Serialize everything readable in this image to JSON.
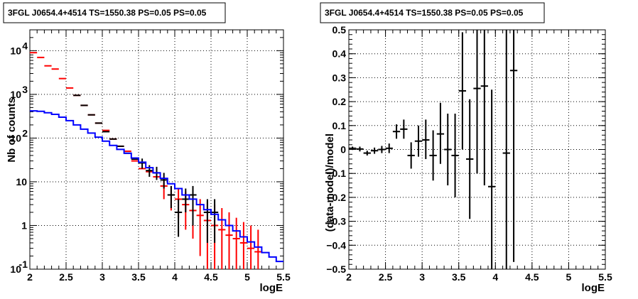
{
  "chart_data": [
    {
      "type": "scatter",
      "title": "3FGL J0654.4+4514 TS=1550.38 PS=0.05 PS=0.05",
      "xlabel": "logE",
      "ylabel": "Nb of counts",
      "xlim": [
        2,
        5.5
      ],
      "ylim": [
        0.1,
        30000
      ],
      "yscale": "log",
      "grid": true,
      "x_ticks": [
        "2",
        "2.5",
        "3",
        "3.5",
        "4",
        "4.5",
        "5",
        "5.5"
      ],
      "y_ticks": [
        {
          "value": 0.1,
          "base": "10",
          "exp": "-1"
        },
        {
          "value": 1,
          "base": "1",
          "exp": ""
        },
        {
          "value": 10,
          "base": "10",
          "exp": ""
        },
        {
          "value": 100,
          "base": "10",
          "exp": "2"
        },
        {
          "value": 1000,
          "base": "10",
          "exp": "3"
        },
        {
          "value": 10000,
          "base": "10",
          "exp": "4"
        }
      ],
      "series": [
        {
          "color": "#ff0000",
          "points": [
            {
              "x": 2.05,
              "y": 9000
            },
            {
              "x": 2.15,
              "y": 7000
            },
            {
              "x": 2.25,
              "y": 4500
            },
            {
              "x": 2.35,
              "y": 3800
            },
            {
              "x": 2.45,
              "y": 2300
            },
            {
              "x": 2.55,
              "y": 1400
            },
            {
              "x": 2.65,
              "y": 950
            },
            {
              "x": 2.75,
              "y": 560
            },
            {
              "x": 2.85,
              "y": 340
            },
            {
              "x": 2.95,
              "y": 220
            },
            {
              "x": 3.05,
              "y": 150
            },
            {
              "x": 3.15,
              "y": 95
            },
            {
              "x": 3.25,
              "y": 65
            },
            {
              "x": 3.35,
              "y": 50
            },
            {
              "x": 3.45,
              "y": 30
            },
            {
              "x": 3.55,
              "y": 20
            },
            {
              "x": 3.65,
              "y": 17
            },
            {
              "x": 3.75,
              "y": 13
            },
            {
              "x": 3.85,
              "y": 8,
              "lo": 4,
              "hi": 13
            },
            {
              "x": 3.95,
              "y": 5,
              "lo": 2.2,
              "hi": 8
            },
            {
              "x": 4.05,
              "y": 4,
              "lo": 1.5,
              "hi": 7
            },
            {
              "x": 4.15,
              "y": 3,
              "lo": 0.8,
              "hi": 6
            },
            {
              "x": 4.25,
              "y": 2.2,
              "lo": 0.5,
              "hi": 4.5
            },
            {
              "x": 4.35,
              "y": 1.7,
              "lo": 0.2,
              "hi": 4
            },
            {
              "x": 4.45,
              "y": 1.3,
              "lo": 0.1,
              "hi": 3.5
            },
            {
              "x": 4.55,
              "y": 1,
              "lo": 0.1,
              "hi": 3
            },
            {
              "x": 4.65,
              "y": 0.8,
              "lo": 0.1,
              "hi": 2.5
            },
            {
              "x": 4.75,
              "y": 0.6,
              "lo": 0.1,
              "hi": 2
            },
            {
              "x": 4.85,
              "y": 0.5,
              "lo": 0.1,
              "hi": 1.5
            },
            {
              "x": 4.95,
              "y": 0.4,
              "lo": 0.1,
              "hi": 1.2
            },
            {
              "x": 5.05,
              "y": 0.3,
              "lo": 0.1,
              "hi": 1.0
            },
            {
              "x": 5.15,
              "y": 0.25,
              "lo": 0.1,
              "hi": 0.8
            }
          ]
        },
        {
          "color": "#000000",
          "points": [
            {
              "x": 2.65,
              "y": 950
            },
            {
              "x": 2.75,
              "y": 560
            },
            {
              "x": 2.85,
              "y": 340
            },
            {
              "x": 2.95,
              "y": 220
            },
            {
              "x": 3.05,
              "y": 140
            },
            {
              "x": 3.15,
              "y": 95
            },
            {
              "x": 3.25,
              "y": 65
            },
            {
              "x": 3.35,
              "y": 45
            },
            {
              "x": 3.45,
              "y": 33
            },
            {
              "x": 3.55,
              "y": 27,
              "lo": 20,
              "hi": 34
            },
            {
              "x": 3.65,
              "y": 18,
              "lo": 13,
              "hi": 24
            },
            {
              "x": 3.75,
              "y": 16,
              "lo": 11,
              "hi": 22
            },
            {
              "x": 3.85,
              "y": 11,
              "lo": 7,
              "hi": 16
            },
            {
              "x": 3.95,
              "y": 5,
              "lo": 2.5,
              "hi": 8
            },
            {
              "x": 4.05,
              "y": 2,
              "lo": 0.55,
              "hi": 4
            },
            {
              "x": 4.15,
              "y": 4,
              "lo": 2,
              "hi": 7
            },
            {
              "x": 4.25,
              "y": 5,
              "lo": 1,
              "hi": 8
            },
            {
              "x": 4.45,
              "y": 2,
              "lo": 0.4,
              "hi": 4
            },
            {
              "x": 4.55,
              "y": 2,
              "lo": 0.4,
              "hi": 4
            }
          ]
        },
        {
          "color": "#0000ff",
          "type": "step",
          "edges": [
            2.0,
            2.1,
            2.2,
            2.3,
            2.4,
            2.5,
            2.6,
            2.7,
            2.8,
            2.9,
            3.0,
            3.1,
            3.2,
            3.3,
            3.4,
            3.5,
            3.6,
            3.7,
            3.8,
            3.9,
            4.0,
            4.1,
            4.2,
            4.3,
            4.4,
            4.5,
            4.6,
            4.7,
            4.8,
            4.9,
            5.0,
            5.1,
            5.2,
            5.3,
            5.4,
            5.5
          ],
          "values": [
            420,
            410,
            380,
            350,
            300,
            250,
            200,
            160,
            130,
            105,
            85,
            68,
            55,
            45,
            35,
            28,
            21,
            16,
            12,
            9,
            7,
            5,
            4,
            3,
            2.3,
            1.8,
            1.35,
            1.0,
            0.75,
            0.55,
            0.42,
            0.32,
            0.24,
            0.19,
            0.15
          ]
        }
      ]
    },
    {
      "type": "scatter",
      "title": "3FGL J0654.4+4514 TS=1550.38 PS=0.05 PS=0.05",
      "xlabel": "logE",
      "ylabel": "(data-model)/model",
      "xlim": [
        2,
        5.5
      ],
      "ylim": [
        -0.5,
        0.5
      ],
      "grid": true,
      "x_ticks": [
        "2",
        "2.5",
        "3",
        "3.5",
        "4",
        "4.5",
        "5",
        "5.5"
      ],
      "y_ticks": [
        "−0.5",
        "−0.4",
        "−0.3",
        "−0.2",
        "−0.1",
        "0",
        "0.1",
        "0.2",
        "0.3",
        "0.4",
        "0.5"
      ],
      "series": [
        {
          "color": "#000000",
          "points": [
            {
              "x": 2.05,
              "y": 0.005,
              "lo": -0.002,
              "hi": 0.012
            },
            {
              "x": 2.15,
              "y": 0.002,
              "lo": -0.008,
              "hi": 0.012
            },
            {
              "x": 2.25,
              "y": -0.015,
              "lo": -0.025,
              "hi": -0.005
            },
            {
              "x": 2.35,
              "y": -0.005,
              "lo": -0.018,
              "hi": 0.008
            },
            {
              "x": 2.45,
              "y": 0.0,
              "lo": -0.015,
              "hi": 0.015
            },
            {
              "x": 2.55,
              "y": 0.005,
              "lo": -0.015,
              "hi": 0.025
            },
            {
              "x": 2.65,
              "y": 0.075,
              "lo": 0.045,
              "hi": 0.105
            },
            {
              "x": 2.75,
              "y": 0.085,
              "lo": 0.045,
              "hi": 0.125
            },
            {
              "x": 2.85,
              "y": -0.025,
              "lo": -0.08,
              "hi": 0.03
            },
            {
              "x": 2.95,
              "y": 0.035,
              "lo": -0.03,
              "hi": 0.1
            },
            {
              "x": 3.05,
              "y": 0.04,
              "lo": -0.04,
              "hi": 0.125
            },
            {
              "x": 3.15,
              "y": -0.025,
              "lo": -0.13,
              "hi": 0.08
            },
            {
              "x": 3.25,
              "y": 0.065,
              "lo": -0.06,
              "hi": 0.195
            },
            {
              "x": 3.35,
              "y": 0.0,
              "lo": -0.15,
              "hi": 0.15
            },
            {
              "x": 3.45,
              "y": -0.025,
              "lo": -0.2,
              "hi": 0.15
            },
            {
              "x": 3.55,
              "y": 0.245,
              "lo": 0.0,
              "hi": 0.49
            },
            {
              "x": 3.65,
              "y": -0.04,
              "lo": -0.29,
              "hi": 0.21
            },
            {
              "x": 3.75,
              "y": 0.255,
              "lo": -0.1,
              "hi": 0.5
            },
            {
              "x": 3.85,
              "y": 0.265,
              "lo": -0.15,
              "hi": 0.5
            },
            {
              "x": 3.95,
              "y": -0.155,
              "lo": -0.5,
              "hi": 0.25
            },
            {
              "x": 4.15,
              "y": -0.015,
              "lo": -0.5,
              "hi": 0.5
            },
            {
              "x": 4.25,
              "y": 0.33,
              "lo": -0.47,
              "hi": 0.5
            }
          ]
        }
      ]
    }
  ]
}
